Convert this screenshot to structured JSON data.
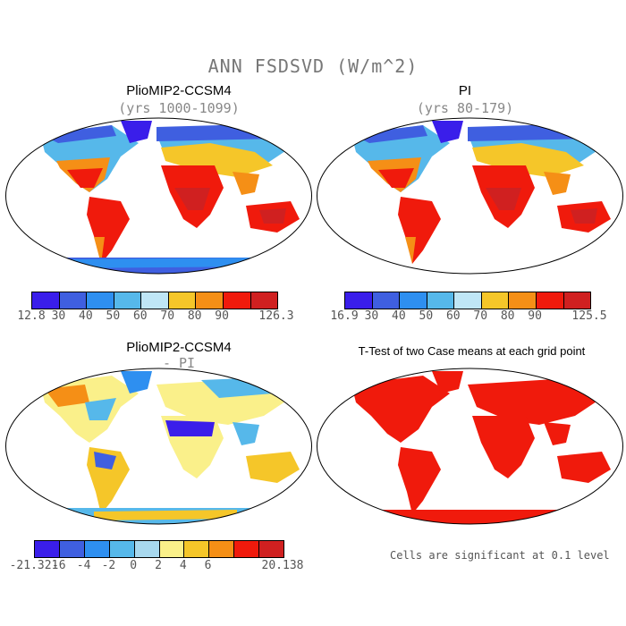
{
  "figure": {
    "title": "ANN FSDSVD (W/m^2)"
  },
  "panels": [
    {
      "title": "PlioMIP2-CCSM4",
      "subtitle": "(yrs 1000-1099)"
    },
    {
      "title": "PI",
      "subtitle": "(yrs 80-179)"
    },
    {
      "title": "PlioMIP2-CCSM4",
      "subtitle": "- PI"
    },
    {
      "title": "T-Test of two Case means at each grid point",
      "subtitle": ""
    }
  ],
  "colorbars": [
    {
      "labels": [
        "12.8",
        "30",
        "40",
        "50",
        "60",
        "70",
        "80",
        "90",
        "126.3"
      ],
      "colors": [
        "#3a1eea",
        "#3f5fe0",
        "#2e8ff0",
        "#56b8ea",
        "#bfe6f6",
        "#f5c629",
        "#f58f16",
        "#f01a0c",
        "#d02020"
      ]
    },
    {
      "labels": [
        "16.9",
        "30",
        "40",
        "50",
        "60",
        "70",
        "80",
        "90",
        "125.5"
      ],
      "colors": [
        "#3a1eea",
        "#3f5fe0",
        "#2e8ff0",
        "#56b8ea",
        "#bfe6f6",
        "#f5c629",
        "#f58f16",
        "#f01a0c",
        "#d02020"
      ]
    },
    {
      "labels": [
        "-21.321",
        "-6",
        "-4",
        "-2",
        "0",
        "2",
        "4",
        "6",
        "20.138"
      ],
      "colors": [
        "#3a1eea",
        "#3f5fe0",
        "#2e8ff0",
        "#56b8ea",
        "#a8d8ee",
        "#faf08a",
        "#f5c629",
        "#f58f16",
        "#f01a0c",
        "#d02020"
      ]
    }
  ],
  "note": "Cells are significant at 0.1 level"
}
